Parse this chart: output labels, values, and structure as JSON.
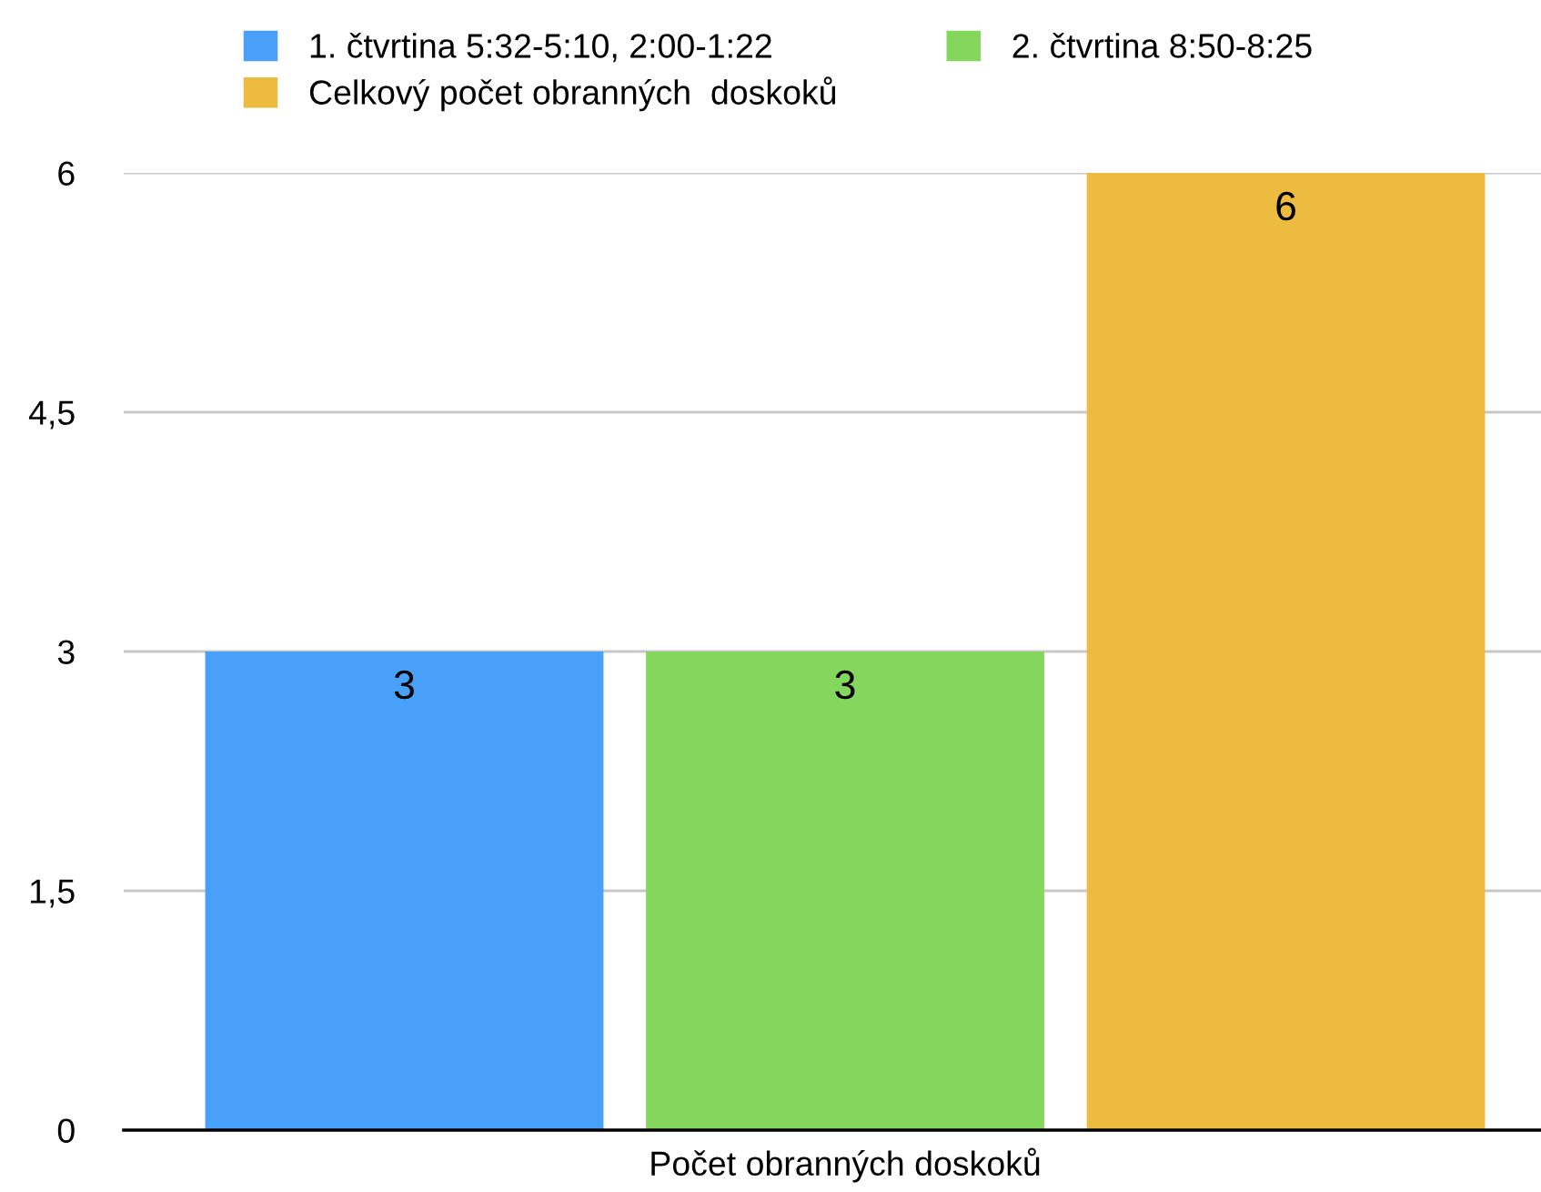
{
  "chart_data": {
    "type": "bar",
    "categories": [
      "Počet obranných doskoků"
    ],
    "series": [
      {
        "name": "1. čtvrtina 5:32-5:10, 2:00-1:22",
        "color": "#48a0f8",
        "values": [
          3
        ]
      },
      {
        "name": "2. čtvrtina 8:50-8:25",
        "color": "#84d65c",
        "values": [
          3
        ]
      },
      {
        "name": "Celkový počet obranných  doskoků",
        "color": "#edbb40",
        "values": [
          6
        ]
      }
    ],
    "ylim": [
      0,
      6
    ],
    "yticks": [
      0,
      {
        "value": 1.5,
        "label": "1,5"
      },
      3,
      {
        "value": 4.5,
        "label": "4,5"
      },
      6
    ],
    "grid": "y",
    "legend": "top",
    "data_labels": true
  }
}
